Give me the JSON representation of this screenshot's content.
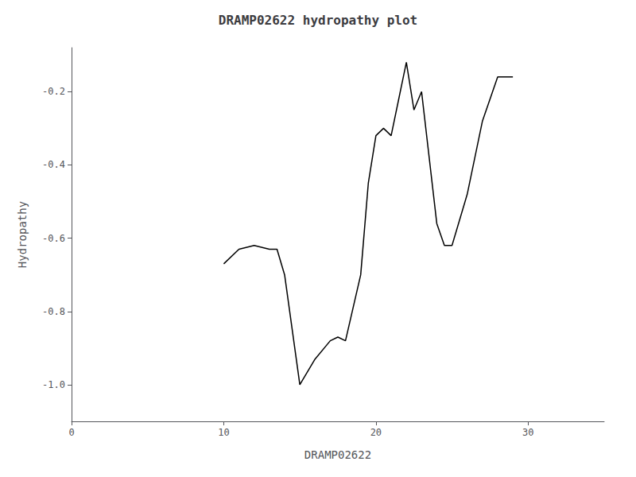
{
  "chart_data": {
    "type": "line",
    "title": "DRAMP02622 hydropathy plot",
    "xlabel": "DRAMP02622",
    "ylabel": "Hydropathy",
    "x": [
      10.0,
      11.0,
      12.0,
      13.0,
      13.5,
      14.0,
      15.0,
      16.0,
      17.0,
      17.5,
      18.0,
      19.0,
      19.5,
      20.0,
      20.5,
      21.0,
      21.5,
      22.0,
      22.5,
      23.0,
      24.0,
      24.5,
      25.0,
      26.0,
      27.0,
      28.0,
      29.0
    ],
    "values": [
      -0.67,
      -0.63,
      -0.62,
      -0.63,
      -0.63,
      -0.7,
      -1.0,
      -0.93,
      -0.88,
      -0.87,
      -0.88,
      -0.7,
      -0.45,
      -0.32,
      -0.3,
      -0.32,
      -0.22,
      -0.12,
      -0.25,
      -0.2,
      -0.56,
      -0.62,
      -0.62,
      -0.48,
      -0.28,
      -0.16,
      -0.16
    ],
    "color": "#000000",
    "xlim": [
      0,
      35
    ],
    "ylim": [
      -1.1,
      -0.08
    ],
    "xticks": [
      0,
      10,
      20,
      30
    ],
    "yticks": [
      {
        "value": -1.0,
        "label": "-1.0"
      },
      -0.8,
      -0.6,
      -0.4,
      -0.2
    ],
    "grid": false
  }
}
